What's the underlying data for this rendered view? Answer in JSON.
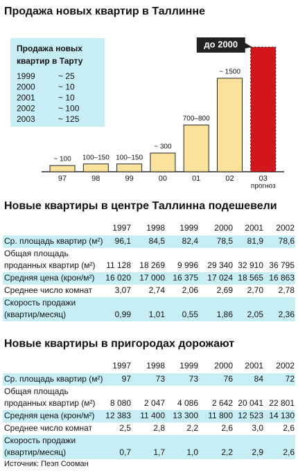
{
  "chart_data": {
    "type": "bar",
    "title": "Продажа новых квартир в Таллинне",
    "categories": [
      "97",
      "98",
      "99",
      "00",
      "01",
      "02",
      "03"
    ],
    "values": [
      100,
      125,
      125,
      300,
      750,
      1500,
      2000
    ],
    "value_labels": [
      "~ 100",
      "100–150",
      "100–150",
      "~ 300",
      "700–800",
      "~ 1500",
      "до 2000"
    ],
    "colors": [
      "#fbe39b",
      "#fbe39b",
      "#fbe39b",
      "#fbe39b",
      "#fbe39b",
      "#fbe39b",
      "#d3161b"
    ],
    "forecast_label": "прогноз"
  },
  "inset": {
    "title": [
      "Продажа новых",
      "квартир в Тарту"
    ],
    "rows": [
      [
        "1999",
        "~ 25"
      ],
      [
        "2000",
        "~ 10"
      ],
      [
        "2001",
        "~ 10"
      ],
      [
        "2002",
        "~ 100"
      ],
      [
        "2003",
        "~ 125"
      ]
    ]
  },
  "tables": [
    {
      "title": "Новые квартиры в центре Таллинна подешевели",
      "columns": [
        "1997",
        "1998",
        "1999",
        "2000",
        "2001",
        "2002"
      ],
      "rows": [
        {
          "label": [
            "Ср. площадь квартир (м²)"
          ],
          "values": [
            "96,1",
            "84,5",
            "82,4",
            "78,5",
            "81,9",
            "78,6"
          ]
        },
        {
          "label": [
            "Общая площадь",
            "проданных квартир (м²)"
          ],
          "values": [
            "11 128",
            "18 269",
            "9 996",
            "29 340",
            "32 910",
            "36 795"
          ]
        },
        {
          "label": [
            "Средняя цена (крон/м²)"
          ],
          "values": [
            "16 020",
            "17 000",
            "16 375",
            "17 024",
            "18 565",
            "16 863"
          ]
        },
        {
          "label": [
            "Среднее число комнат"
          ],
          "values": [
            "3,07",
            "2,74",
            "2,06",
            "2,69",
            "2,70",
            "2,78"
          ]
        },
        {
          "label": [
            "Скорость продажи",
            "(квартир/месяц)"
          ],
          "values": [
            "0,99",
            "1,01",
            "0,55",
            "1,86",
            "2,05",
            "2,36"
          ]
        }
      ]
    },
    {
      "title": "Новые квартиры в пригородах дорожают",
      "columns": [
        "1997",
        "1998",
        "1999",
        "2000",
        "2001",
        "2002"
      ],
      "rows": [
        {
          "label": [
            "Ср. площадь квартир (м²)"
          ],
          "values": [
            "97",
            "73",
            "73",
            "76",
            "84",
            "72"
          ]
        },
        {
          "label": [
            "Общая площадь",
            "проданных квартир (м²)"
          ],
          "values": [
            "8 080",
            "2 047",
            "4 086",
            "2 642",
            "20 041",
            "22 801"
          ]
        },
        {
          "label": [
            "Средняя цена (крон/м²)"
          ],
          "values": [
            "12 383",
            "11 400",
            "13 300",
            "11 800",
            "12 523",
            "14 130"
          ]
        },
        {
          "label": [
            "Среднее число комнат"
          ],
          "values": [
            "2,5",
            "2,8",
            "2,2",
            "2,6",
            "3,0",
            "2,6"
          ]
        },
        {
          "label": [
            "Скорость продажи",
            "(квартир/месяц)"
          ],
          "values": [
            "0,7",
            "1,7",
            "1,0",
            "2,2",
            "2,9",
            "2,6"
          ]
        }
      ]
    }
  ],
  "source": "Источник: Пеэп Сооман"
}
